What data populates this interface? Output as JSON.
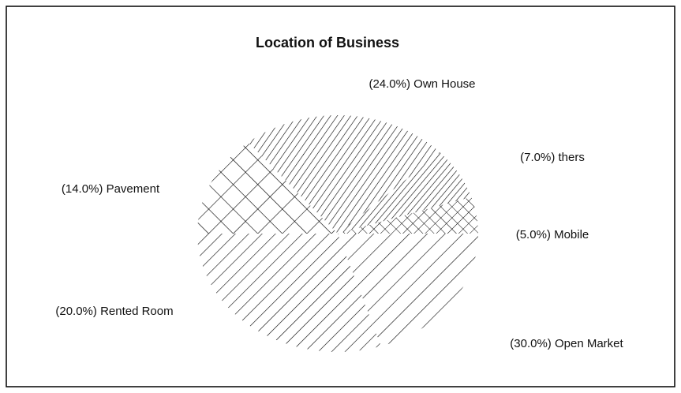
{
  "chart_data": {
    "type": "pie",
    "title": "Location of Business",
    "categories": [
      "Pavement",
      "Own House",
      "thers",
      "Mobile",
      "Rented Room",
      "Open Market"
    ],
    "values": [
      14,
      24,
      7,
      5,
      20,
      30
    ],
    "value_labels": [
      "(14.0%)",
      "(24.0%)",
      "(7.0%)",
      "(5.0%)",
      "(20.0%)",
      "(30.0%)"
    ]
  }
}
